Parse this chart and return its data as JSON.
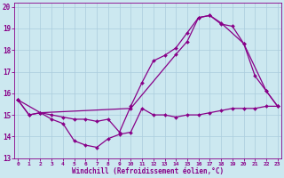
{
  "xlabel": "Windchill (Refroidissement éolien,°C)",
  "background_color": "#cce8f0",
  "line_color": "#880088",
  "grid_color": "#aaccdd",
  "ylim": [
    13,
    20
  ],
  "yticks": [
    13,
    14,
    15,
    16,
    17,
    18,
    19,
    20
  ],
  "xticks": [
    0,
    1,
    2,
    3,
    4,
    5,
    6,
    7,
    8,
    9,
    10,
    11,
    12,
    13,
    14,
    15,
    16,
    17,
    18,
    19,
    20,
    21,
    22,
    23
  ],
  "line1_x": [
    0,
    1,
    2,
    3,
    4,
    5,
    6,
    7,
    8,
    9,
    10,
    11,
    12,
    13,
    14,
    15,
    16,
    17,
    18,
    19,
    20,
    21,
    22,
    23
  ],
  "line1_y": [
    15.7,
    15.0,
    15.1,
    14.8,
    14.6,
    13.8,
    13.6,
    13.5,
    13.9,
    14.1,
    14.2,
    15.3,
    15.0,
    15.0,
    14.9,
    15.0,
    15.0,
    15.1,
    15.2,
    15.3,
    15.3,
    15.3,
    15.4,
    15.4
  ],
  "line2_x": [
    0,
    1,
    2,
    3,
    4,
    5,
    6,
    7,
    8,
    9,
    10,
    11,
    12,
    13,
    14,
    15,
    16,
    17,
    18,
    19,
    20,
    21,
    22,
    23
  ],
  "line2_y": [
    15.7,
    15.0,
    15.1,
    15.0,
    14.9,
    14.8,
    14.8,
    14.7,
    14.8,
    14.2,
    15.4,
    16.5,
    17.5,
    17.75,
    18.1,
    18.8,
    19.5,
    19.6,
    19.2,
    19.1,
    18.3,
    16.8,
    16.1,
    15.4
  ],
  "line3_x": [
    0,
    2,
    10,
    14,
    15,
    16,
    17,
    18,
    20,
    22,
    23
  ],
  "line3_y": [
    15.7,
    15.1,
    15.3,
    17.8,
    18.4,
    19.5,
    19.6,
    19.25,
    18.3,
    16.1,
    15.4
  ]
}
